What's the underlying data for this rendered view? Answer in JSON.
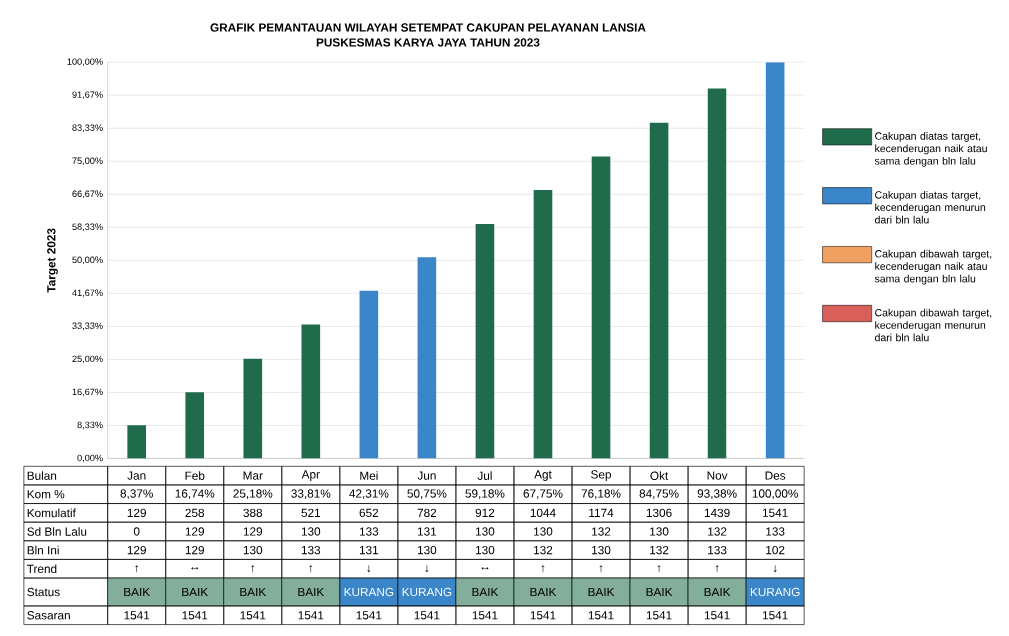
{
  "chart_data": {
    "type": "bar",
    "title": "GRAFIK PEMANTAUAN WILAYAH SETEMPAT CAKUPAN PELAYANAN LANSIA",
    "subtitle": "PUSKESMAS KARYA JAYA TAHUN 2023",
    "ylabel": "Target 2023",
    "categories": [
      "Jan",
      "Feb",
      "Mar",
      "Apr",
      "Mei",
      "Jun",
      "Jul",
      "Agt",
      "Sep",
      "Okt",
      "Nov",
      "Des"
    ],
    "series": [
      {
        "name": "Cakupan diatas target, kecenderugan naik atau sama dengan bln lalu",
        "color": "#1f6b4b",
        "values": [
          8.37,
          16.74,
          25.18,
          33.81,
          null,
          null,
          59.18,
          67.75,
          76.18,
          84.75,
          93.38,
          null
        ],
        "value_labels": [
          "8,37%",
          "16,74%",
          "25,18%",
          "33,81%",
          null,
          null,
          "59,18%",
          "67,75%",
          "76,18%",
          "84,75%",
          "93,38%",
          null
        ]
      },
      {
        "name": "Cakupan diatas target, kecenderugan menurun dari bln lalu",
        "color": "#3a86c8",
        "values": [
          null,
          null,
          null,
          null,
          42.31,
          50.75,
          null,
          null,
          null,
          null,
          null,
          100
        ],
        "value_labels": [
          null,
          null,
          null,
          null,
          "42,31%",
          "50,75%",
          null,
          null,
          null,
          null,
          null,
          "100,00%"
        ]
      },
      {
        "name": "Cakupan dibawah target, kecenderugan naik atau sama dengan bln lalu",
        "color": "#f0a060",
        "values": [
          null,
          null,
          null,
          null,
          null,
          null,
          null,
          null,
          null,
          null,
          null,
          null
        ]
      },
      {
        "name": "Cakupan dibawah target, kecenderugan menurun dari bln lalu",
        "color": "#d9605a",
        "values": [
          null,
          null,
          null,
          null,
          null,
          null,
          null,
          null,
          null,
          null,
          null,
          null
        ]
      }
    ],
    "ylim": [
      0,
      100
    ],
    "yticks": [
      {
        "value": 0,
        "label": "0,00%"
      },
      {
        "value": 8.33,
        "label": "8,33%"
      },
      {
        "value": 16.67,
        "label": "16,67%"
      },
      {
        "value": 25,
        "label": "25,00%"
      },
      {
        "value": 33.33,
        "label": "33,33%"
      },
      {
        "value": 41.67,
        "label": "41,67%"
      },
      {
        "value": 50,
        "label": "50,00%"
      },
      {
        "value": 58.33,
        "label": "58,33%"
      },
      {
        "value": 66.67,
        "label": "66,67%"
      },
      {
        "value": 75,
        "label": "75,00%"
      },
      {
        "value": 83.33,
        "label": "83,33%"
      },
      {
        "value": 91.67,
        "label": "91,67%"
      },
      {
        "value": 100,
        "label": "100,00%"
      }
    ],
    "grid": "y",
    "legend": "right",
    "annotations": [
      "Bulan",
      "Kom %",
      "Komulatif",
      "129",
      "258",
      "388",
      "521",
      "652",
      "782",
      "912",
      "1044",
      "1174",
      "1306",
      "1439",
      "1541",
      "Sd Bln Lalu",
      "0",
      "129",
      "129",
      "130",
      "133",
      "131",
      "130",
      "130",
      "132",
      "130",
      "132",
      "133",
      "Bln Ini",
      "129",
      "129",
      "130",
      "133",
      "131",
      "130",
      "130",
      "132",
      "130",
      "132",
      "133",
      "102",
      "Trend",
      "↑",
      "↔",
      "↑",
      "↑",
      "↓",
      "↓",
      "↔",
      "↑",
      "↑",
      "↑",
      "↑",
      "↓",
      "Status",
      "BAIK",
      "BAIK",
      "BAIK",
      "BAIK",
      "KURANG",
      "KURANG",
      "BAIK",
      "BAIK",
      "BAIK",
      "BAIK",
      "BAIK",
      "KURANG",
      "Sasaran",
      "1541",
      "1541",
      "1541",
      "1541",
      "1541",
      "1541",
      "1541",
      "1541",
      "1541",
      "1541",
      "1541",
      "1541"
    ]
  }
}
